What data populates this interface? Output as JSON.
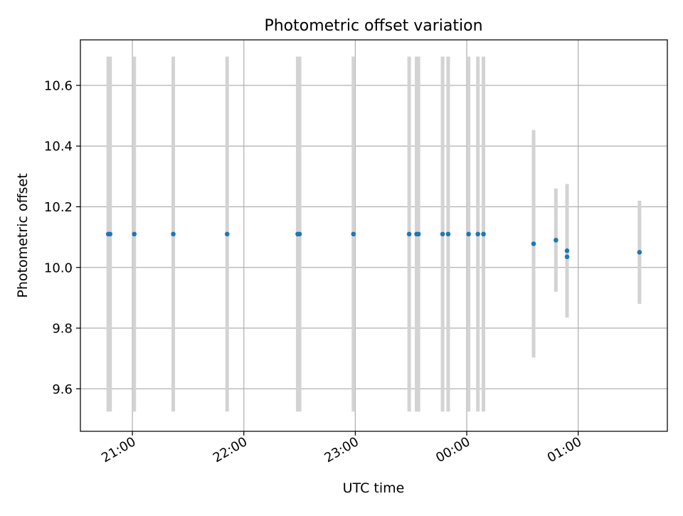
{
  "chart_data": {
    "type": "scatter",
    "title": "Photometric offset variation",
    "xlabel": "UTC time",
    "ylabel": "Photometric offset",
    "xlim": [
      "20:32",
      "01:48"
    ],
    "ylim": [
      9.46,
      10.75
    ],
    "xticks": [
      "21:00",
      "22:00",
      "23:00",
      "00:00",
      "01:00"
    ],
    "yticks": [
      9.6,
      9.8,
      10.0,
      10.2,
      10.4,
      10.6
    ],
    "grid": true,
    "marker_color": "#1f77b4",
    "errorbar_color": "#d3d3d3",
    "points": [
      {
        "x": "20:47",
        "y": 10.11,
        "yerr": 0.585
      },
      {
        "x": "20:48",
        "y": 10.11,
        "yerr": 0.585
      },
      {
        "x": "21:01",
        "y": 10.11,
        "yerr": 0.585
      },
      {
        "x": "21:22",
        "y": 10.11,
        "yerr": 0.585
      },
      {
        "x": "21:51",
        "y": 10.11,
        "yerr": 0.585
      },
      {
        "x": "22:29",
        "y": 10.11,
        "yerr": 0.585
      },
      {
        "x": "22:30",
        "y": 10.11,
        "yerr": 0.585
      },
      {
        "x": "22:59",
        "y": 10.11,
        "yerr": 0.585
      },
      {
        "x": "23:29",
        "y": 10.11,
        "yerr": 0.585
      },
      {
        "x": "23:33",
        "y": 10.11,
        "yerr": 0.585
      },
      {
        "x": "23:34",
        "y": 10.11,
        "yerr": 0.585
      },
      {
        "x": "23:47",
        "y": 10.11,
        "yerr": 0.585
      },
      {
        "x": "23:50",
        "y": 10.11,
        "yerr": 0.585
      },
      {
        "x": "00:01",
        "y": 10.11,
        "yerr": 0.585
      },
      {
        "x": "00:06",
        "y": 10.11,
        "yerr": 0.585
      },
      {
        "x": "00:09",
        "y": 10.11,
        "yerr": 0.585
      },
      {
        "x": "00:36",
        "y": 10.078,
        "yerr": 0.375
      },
      {
        "x": "00:48",
        "y": 10.09,
        "yerr": 0.17
      },
      {
        "x": "00:54",
        "y": 10.035,
        "yerr": 0.19
      },
      {
        "x": "00:54",
        "y": 10.055,
        "yerr": 0.22
      },
      {
        "x": "01:33",
        "y": 10.05,
        "yerr": 0.17
      }
    ]
  }
}
